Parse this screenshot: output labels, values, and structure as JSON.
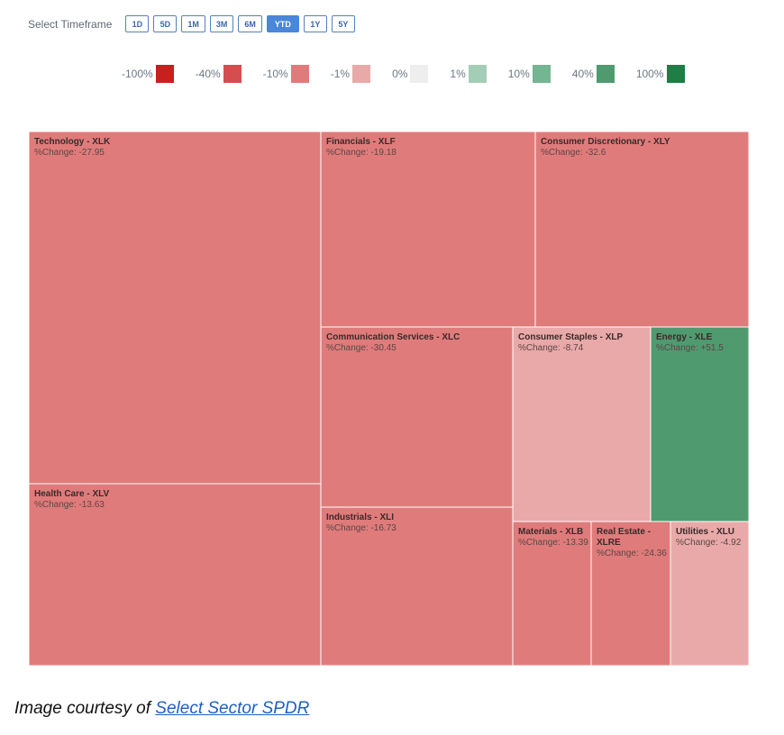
{
  "timeframe": {
    "label": "Select Timeframe",
    "buttons": [
      "1D",
      "5D",
      "1M",
      "3M",
      "6M",
      "YTD",
      "1Y",
      "5Y"
    ],
    "active": "YTD"
  },
  "legend": [
    {
      "label": "-100%",
      "color": "#c8201f"
    },
    {
      "label": "-40%",
      "color": "#d44e4f"
    },
    {
      "label": "-10%",
      "color": "#e07b7b"
    },
    {
      "label": "-1%",
      "color": "#e9a9a8"
    },
    {
      "label": "0%",
      "color": "#eeeeee"
    },
    {
      "label": "1%",
      "color": "#a3cdb7"
    },
    {
      "label": "10%",
      "color": "#74b592"
    },
    {
      "label": "40%",
      "color": "#4f9a6f"
    },
    {
      "label": "100%",
      "color": "#1e7e45"
    }
  ],
  "chart_data": {
    "type": "treemap",
    "change_prefix": "%Change: ",
    "items": [
      {
        "name": "Technology - XLK",
        "change": "-27.95",
        "color": "#e07b7b"
      },
      {
        "name": "Health Care - XLV",
        "change": "-13.63",
        "color": "#e07b7b"
      },
      {
        "name": "Financials - XLF",
        "change": "-19.18",
        "color": "#e07b7b"
      },
      {
        "name": "Consumer Discretionary - XLY",
        "change": "-32.6",
        "color": "#e07b7b"
      },
      {
        "name": "Communication Services - XLC",
        "change": "-30.45",
        "color": "#e07b7b"
      },
      {
        "name": "Industrials - XLI",
        "change": "-16.73",
        "color": "#e07b7b"
      },
      {
        "name": "Consumer Staples - XLP",
        "change": "-8.74",
        "color": "#e9a9a8"
      },
      {
        "name": "Energy - XLE",
        "change": "+51.5",
        "color": "#4f9a6f"
      },
      {
        "name": "Materials - XLB",
        "change": "-13.39",
        "color": "#e07b7b"
      },
      {
        "name": "Real Estate - XLRE",
        "change": "-24.36",
        "color": "#e07b7b"
      },
      {
        "name": "Utilities - XLU",
        "change": "-4.92",
        "color": "#e9a9a8"
      }
    ]
  },
  "credit": {
    "prefix": "Image courtesy of ",
    "link_text": "Select Sector SPDR"
  }
}
